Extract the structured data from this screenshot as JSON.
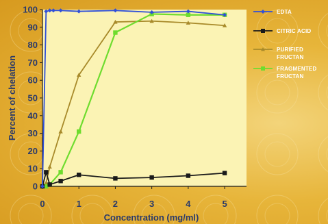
{
  "chart_data": {
    "type": "line",
    "xlabel": "Concentration (mg/ml)",
    "ylabel": "Percent of chelation",
    "xlim": [
      0,
      5.6
    ],
    "ylim": [
      0,
      100
    ],
    "xticks": [
      0,
      1,
      2,
      3,
      4,
      5
    ],
    "yticks": [
      0,
      10,
      20,
      30,
      40,
      50,
      60,
      70,
      80,
      90,
      100
    ],
    "grid": false,
    "legend_position": "right",
    "colors": {
      "plot_background": "#fbf3b4",
      "axis": "#1a1a1a",
      "text": "#2a3a6a"
    },
    "series": [
      {
        "name": "EDTA",
        "color": "#2f4fd8",
        "marker": "diamond",
        "x": [
          0,
          0.1,
          0.2,
          0.3,
          0.5,
          1,
          2,
          3,
          4,
          5
        ],
        "y": [
          0,
          99,
          99.5,
          99.5,
          99.5,
          99,
          99.5,
          98.5,
          99,
          97
        ]
      },
      {
        "name": "CITRIC ACID",
        "color": "#1a1a1a",
        "marker": "square",
        "x": [
          0,
          0.1,
          0.2,
          0.5,
          1,
          2,
          3,
          4,
          5
        ],
        "y": [
          0,
          8,
          1,
          3,
          6.5,
          4.5,
          5,
          6,
          7.5
        ]
      },
      {
        "name": "PURIFIED FRUCTAN",
        "label_lines": [
          "PURIFIED",
          "FRUCTAN"
        ],
        "color": "#a88a2a",
        "marker": "triangle",
        "x": [
          0,
          0.1,
          0.2,
          0.5,
          1,
          2,
          3,
          4,
          5
        ],
        "y": [
          0,
          2,
          11,
          31,
          63,
          93,
          93.5,
          92.5,
          91
        ]
      },
      {
        "name": "FRAGMENTED FRUCTAN",
        "label_lines": [
          "FRAGMENTED",
          "FRUCTAN"
        ],
        "color": "#6edc2e",
        "marker": "square",
        "x": [
          0,
          0.1,
          0.2,
          0.5,
          1,
          2,
          3,
          4,
          5
        ],
        "y": [
          0,
          0,
          1,
          8,
          31,
          87,
          97.5,
          97,
          97
        ]
      }
    ]
  }
}
